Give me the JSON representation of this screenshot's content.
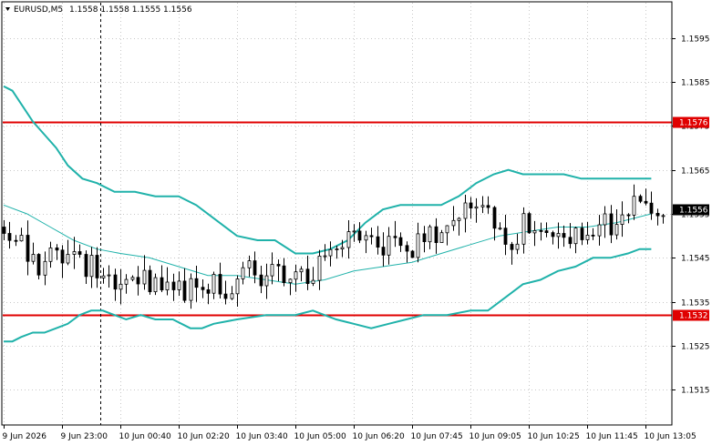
{
  "header": {
    "symbol_label": "EURUSD,M5",
    "ohlc": "1.1558 1.1558 1.1555 1.1556"
  },
  "colors": {
    "candle": "#000000",
    "band": "#20b2aa",
    "level": "#e00000",
    "grid": "#c8c8c8",
    "vline": "#000000"
  },
  "chart_data": {
    "type": "candlestick",
    "ylim": [
      1.1507,
      1.1603
    ],
    "x_count": 227,
    "y_ticks": [
      {
        "label": "1.1595",
        "value": 1.1595
      },
      {
        "label": "1.1585",
        "value": 1.1585
      },
      {
        "label": "1.1575",
        "value": 1.1575
      },
      {
        "label": "1.1565",
        "value": 1.1565
      },
      {
        "label": "1.1555",
        "value": 1.1555
      },
      {
        "label": "1.1545",
        "value": 1.1545
      },
      {
        "label": "1.1535",
        "value": 1.1535
      },
      {
        "label": "1.1525",
        "value": 1.1525
      },
      {
        "label": "1.1515",
        "value": 1.1515
      }
    ],
    "x_ticks": [
      {
        "label": "9 Jun 2026",
        "i": 0
      },
      {
        "label": "9 Jun 23:00",
        "i": 20
      },
      {
        "label": "10 Jun 00:40",
        "i": 40
      },
      {
        "label": "10 Jun 02:20",
        "i": 60
      },
      {
        "label": "10 Jun 03:40",
        "i": 80
      },
      {
        "label": "10 Jun 05:00",
        "i": 100
      },
      {
        "label": "10 Jun 06:20",
        "i": 120
      },
      {
        "label": "10 Jun 07:45",
        "i": 140
      },
      {
        "label": "10 Jun 09:05",
        "i": 160
      },
      {
        "label": "10 Jun 10:25",
        "i": 180
      },
      {
        "label": "10 Jun 11:45",
        "i": 200
      },
      {
        "label": "10 Jun 13:05",
        "i": 220
      }
    ],
    "levels": [
      {
        "label": "1.1576",
        "value": 1.1576
      },
      {
        "label": "1.1532",
        "value": 1.1532
      }
    ],
    "current_price": {
      "label": "1.1556",
      "value": 1.1556
    },
    "cursor_i": 33,
    "bands": {
      "upper": [
        [
          0,
          1.1584
        ],
        [
          3,
          1.1583
        ],
        [
          6,
          1.158
        ],
        [
          10,
          1.1576
        ],
        [
          14,
          1.1573
        ],
        [
          18,
          1.157
        ],
        [
          22,
          1.1566
        ],
        [
          27,
          1.1563
        ],
        [
          32,
          1.1562
        ],
        [
          38,
          1.156
        ],
        [
          45,
          1.156
        ],
        [
          52,
          1.1559
        ],
        [
          60,
          1.1559
        ],
        [
          66,
          1.1557
        ],
        [
          74,
          1.1553
        ],
        [
          80,
          1.155
        ],
        [
          87,
          1.1549
        ],
        [
          93,
          1.1549
        ],
        [
          100,
          1.1546
        ],
        [
          106,
          1.1546
        ],
        [
          112,
          1.1547
        ],
        [
          118,
          1.1549
        ],
        [
          124,
          1.1553
        ],
        [
          130,
          1.1556
        ],
        [
          136,
          1.1557
        ],
        [
          143,
          1.1557
        ],
        [
          150,
          1.1557
        ],
        [
          156,
          1.1559
        ],
        [
          162,
          1.1562
        ],
        [
          168,
          1.1564
        ],
        [
          173,
          1.1565
        ],
        [
          178,
          1.1564
        ],
        [
          185,
          1.1564
        ],
        [
          192,
          1.1564
        ],
        [
          198,
          1.1563
        ],
        [
          205,
          1.1563
        ],
        [
          212,
          1.1563
        ],
        [
          218,
          1.1563
        ],
        [
          222,
          1.1563
        ]
      ],
      "middle": [
        [
          0,
          1.1557
        ],
        [
          8,
          1.1555
        ],
        [
          16,
          1.1552
        ],
        [
          24,
          1.1549
        ],
        [
          32,
          1.1547
        ],
        [
          40,
          1.1546
        ],
        [
          50,
          1.1545
        ],
        [
          60,
          1.1543
        ],
        [
          70,
          1.1541
        ],
        [
          80,
          1.1541
        ],
        [
          90,
          1.154
        ],
        [
          100,
          1.1539
        ],
        [
          110,
          1.154
        ],
        [
          120,
          1.1542
        ],
        [
          130,
          1.1543
        ],
        [
          140,
          1.1544
        ],
        [
          150,
          1.1546
        ],
        [
          160,
          1.1548
        ],
        [
          170,
          1.155
        ],
        [
          180,
          1.1551
        ],
        [
          190,
          1.1552
        ],
        [
          200,
          1.1552
        ],
        [
          210,
          1.1553
        ],
        [
          222,
          1.1555
        ]
      ],
      "lower": [
        [
          0,
          1.1526
        ],
        [
          3,
          1.1526
        ],
        [
          6,
          1.1527
        ],
        [
          10,
          1.1528
        ],
        [
          14,
          1.1528
        ],
        [
          18,
          1.1529
        ],
        [
          22,
          1.153
        ],
        [
          26,
          1.1532
        ],
        [
          30,
          1.1533
        ],
        [
          34,
          1.1533
        ],
        [
          38,
          1.1532
        ],
        [
          42,
          1.1531
        ],
        [
          47,
          1.1532
        ],
        [
          52,
          1.1531
        ],
        [
          58,
          1.1531
        ],
        [
          64,
          1.1529
        ],
        [
          68,
          1.1529
        ],
        [
          72,
          1.153
        ],
        [
          80,
          1.1531
        ],
        [
          90,
          1.1532
        ],
        [
          100,
          1.1532
        ],
        [
          106,
          1.1533
        ],
        [
          110,
          1.1532
        ],
        [
          114,
          1.1531
        ],
        [
          120,
          1.153
        ],
        [
          126,
          1.1529
        ],
        [
          132,
          1.153
        ],
        [
          138,
          1.1531
        ],
        [
          144,
          1.1532
        ],
        [
          152,
          1.1532
        ],
        [
          160,
          1.1533
        ],
        [
          166,
          1.1533
        ],
        [
          172,
          1.1536
        ],
        [
          178,
          1.1539
        ],
        [
          184,
          1.154
        ],
        [
          190,
          1.1542
        ],
        [
          196,
          1.1543
        ],
        [
          202,
          1.1545
        ],
        [
          208,
          1.1545
        ],
        [
          214,
          1.1546
        ],
        [
          218,
          1.1547
        ],
        [
          222,
          1.1547
        ]
      ]
    },
    "price_path": [
      [
        0,
        1.1552
      ],
      [
        5,
        1.1549
      ],
      [
        10,
        1.1544
      ],
      [
        14,
        1.1544
      ],
      [
        18,
        1.1546
      ],
      [
        22,
        1.1546
      ],
      [
        26,
        1.1544
      ],
      [
        30,
        1.1543
      ],
      [
        34,
        1.1542
      ],
      [
        38,
        1.1539
      ],
      [
        42,
        1.154
      ],
      [
        46,
        1.1541
      ],
      [
        50,
        1.154
      ],
      [
        54,
        1.154
      ],
      [
        58,
        1.1539
      ],
      [
        62,
        1.1538
      ],
      [
        66,
        1.1537
      ],
      [
        70,
        1.1538
      ],
      [
        74,
        1.1539
      ],
      [
        78,
        1.1537
      ],
      [
        82,
        1.1541
      ],
      [
        86,
        1.1542
      ],
      [
        90,
        1.1541
      ],
      [
        94,
        1.1541
      ],
      [
        98,
        1.154
      ],
      [
        102,
        1.1541
      ],
      [
        106,
        1.1542
      ],
      [
        110,
        1.1545
      ],
      [
        114,
        1.1548
      ],
      [
        118,
        1.155
      ],
      [
        122,
        1.155
      ],
      [
        126,
        1.1551
      ],
      [
        130,
        1.1548
      ],
      [
        134,
        1.1547
      ],
      [
        138,
        1.1548
      ],
      [
        142,
        1.1548
      ],
      [
        146,
        1.155
      ],
      [
        150,
        1.1552
      ],
      [
        154,
        1.1555
      ],
      [
        158,
        1.1556
      ],
      [
        162,
        1.1557
      ],
      [
        166,
        1.1555
      ],
      [
        170,
        1.1551
      ],
      [
        174,
        1.1549
      ],
      [
        178,
        1.1553
      ],
      [
        182,
        1.1553
      ],
      [
        186,
        1.1551
      ],
      [
        190,
        1.1553
      ],
      [
        194,
        1.1551
      ],
      [
        198,
        1.1549
      ],
      [
        202,
        1.155
      ],
      [
        206,
        1.1552
      ],
      [
        210,
        1.1554
      ],
      [
        214,
        1.1557
      ],
      [
        218,
        1.1558
      ],
      [
        222,
        1.1556
      ]
    ]
  }
}
